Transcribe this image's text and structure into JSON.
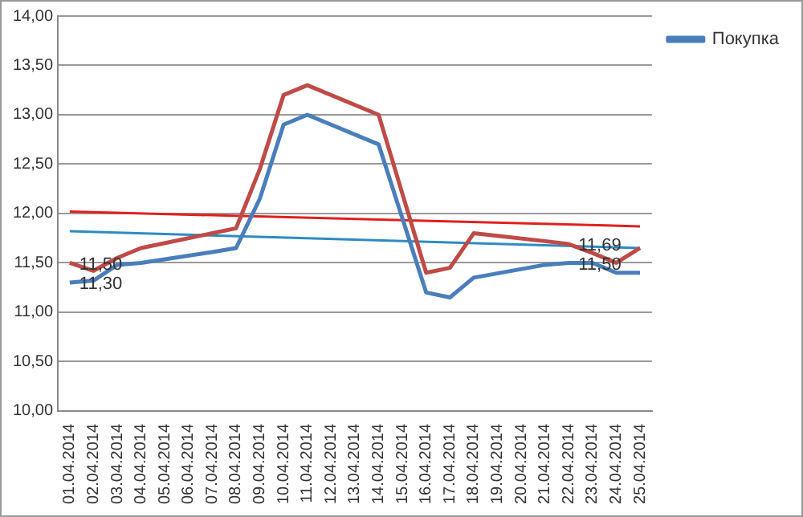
{
  "chart_data": {
    "type": "line",
    "categories": [
      "01.04.2014",
      "02.04.2014",
      "03.04.2014",
      "04.04.2014",
      "05.04.2014",
      "06.04.2014",
      "07.04.2014",
      "08.04.2014",
      "09.04.2014",
      "10.04.2014",
      "11.04.2014",
      "12.04.2014",
      "13.04.2014",
      "14.04.2014",
      "15.04.2014",
      "16.04.2014",
      "17.04.2014",
      "18.04.2014",
      "19.04.2014",
      "20.04.2014",
      "21.04.2014",
      "22.04.2014",
      "23.04.2014",
      "24.04.2014",
      "25.04.2014"
    ],
    "series": [
      {
        "name": "Покупка",
        "color": "#4a7ebb",
        "values": [
          11.3,
          11.32,
          11.48,
          11.5,
          null,
          null,
          11.61,
          11.65,
          12.15,
          12.9,
          13.0,
          null,
          null,
          12.7,
          11.95,
          11.2,
          11.15,
          11.35,
          null,
          null,
          11.48,
          11.5,
          11.5,
          11.4,
          11.4
        ],
        "value_labels": [
          "11,30",
          null,
          null,
          null,
          null,
          null,
          null,
          null,
          null,
          null,
          null,
          null,
          null,
          null,
          null,
          null,
          null,
          null,
          null,
          null,
          null,
          "11,50",
          null,
          null,
          null
        ]
      },
      {
        "color": "#be4b48",
        "values": [
          11.5,
          11.42,
          11.55,
          11.65,
          null,
          null,
          11.8,
          11.85,
          12.45,
          13.2,
          13.3,
          null,
          null,
          13.0,
          12.2,
          11.4,
          11.45,
          11.8,
          null,
          null,
          11.72,
          11.69,
          11.6,
          11.5,
          11.65
        ],
        "value_labels": [
          "11,50",
          null,
          null,
          null,
          null,
          null,
          null,
          null,
          null,
          null,
          null,
          null,
          null,
          null,
          null,
          null,
          null,
          null,
          null,
          null,
          null,
          "11,69",
          null,
          null,
          null
        ]
      },
      {
        "type": "line",
        "color": "#e0201f",
        "x": [
          "01.04.2014",
          "25.04.2014"
        ],
        "values": [
          12.02,
          11.87
        ]
      },
      {
        "type": "line",
        "color": "#2e8bc0",
        "x": [
          "01.04.2014",
          "25.04.2014"
        ],
        "values": [
          11.82,
          11.65
        ]
      }
    ],
    "ylim": [
      10,
      14
    ],
    "yticks": [
      {
        "value": 10,
        "label": "10,00"
      },
      {
        "value": 10.5,
        "label": "10,50"
      },
      {
        "value": 11,
        "label": "11,00"
      },
      {
        "value": 11.5,
        "label": "11,50"
      },
      {
        "value": 12,
        "label": "12,00"
      },
      {
        "value": 12.5,
        "label": "12,50"
      },
      {
        "value": 13,
        "label": "13,00"
      },
      {
        "value": 13.5,
        "label": "13,50"
      },
      {
        "value": 14,
        "label": "14,00"
      }
    ],
    "grid": "y",
    "legend": "right",
    "marker": "none",
    "line_style": "solid"
  }
}
